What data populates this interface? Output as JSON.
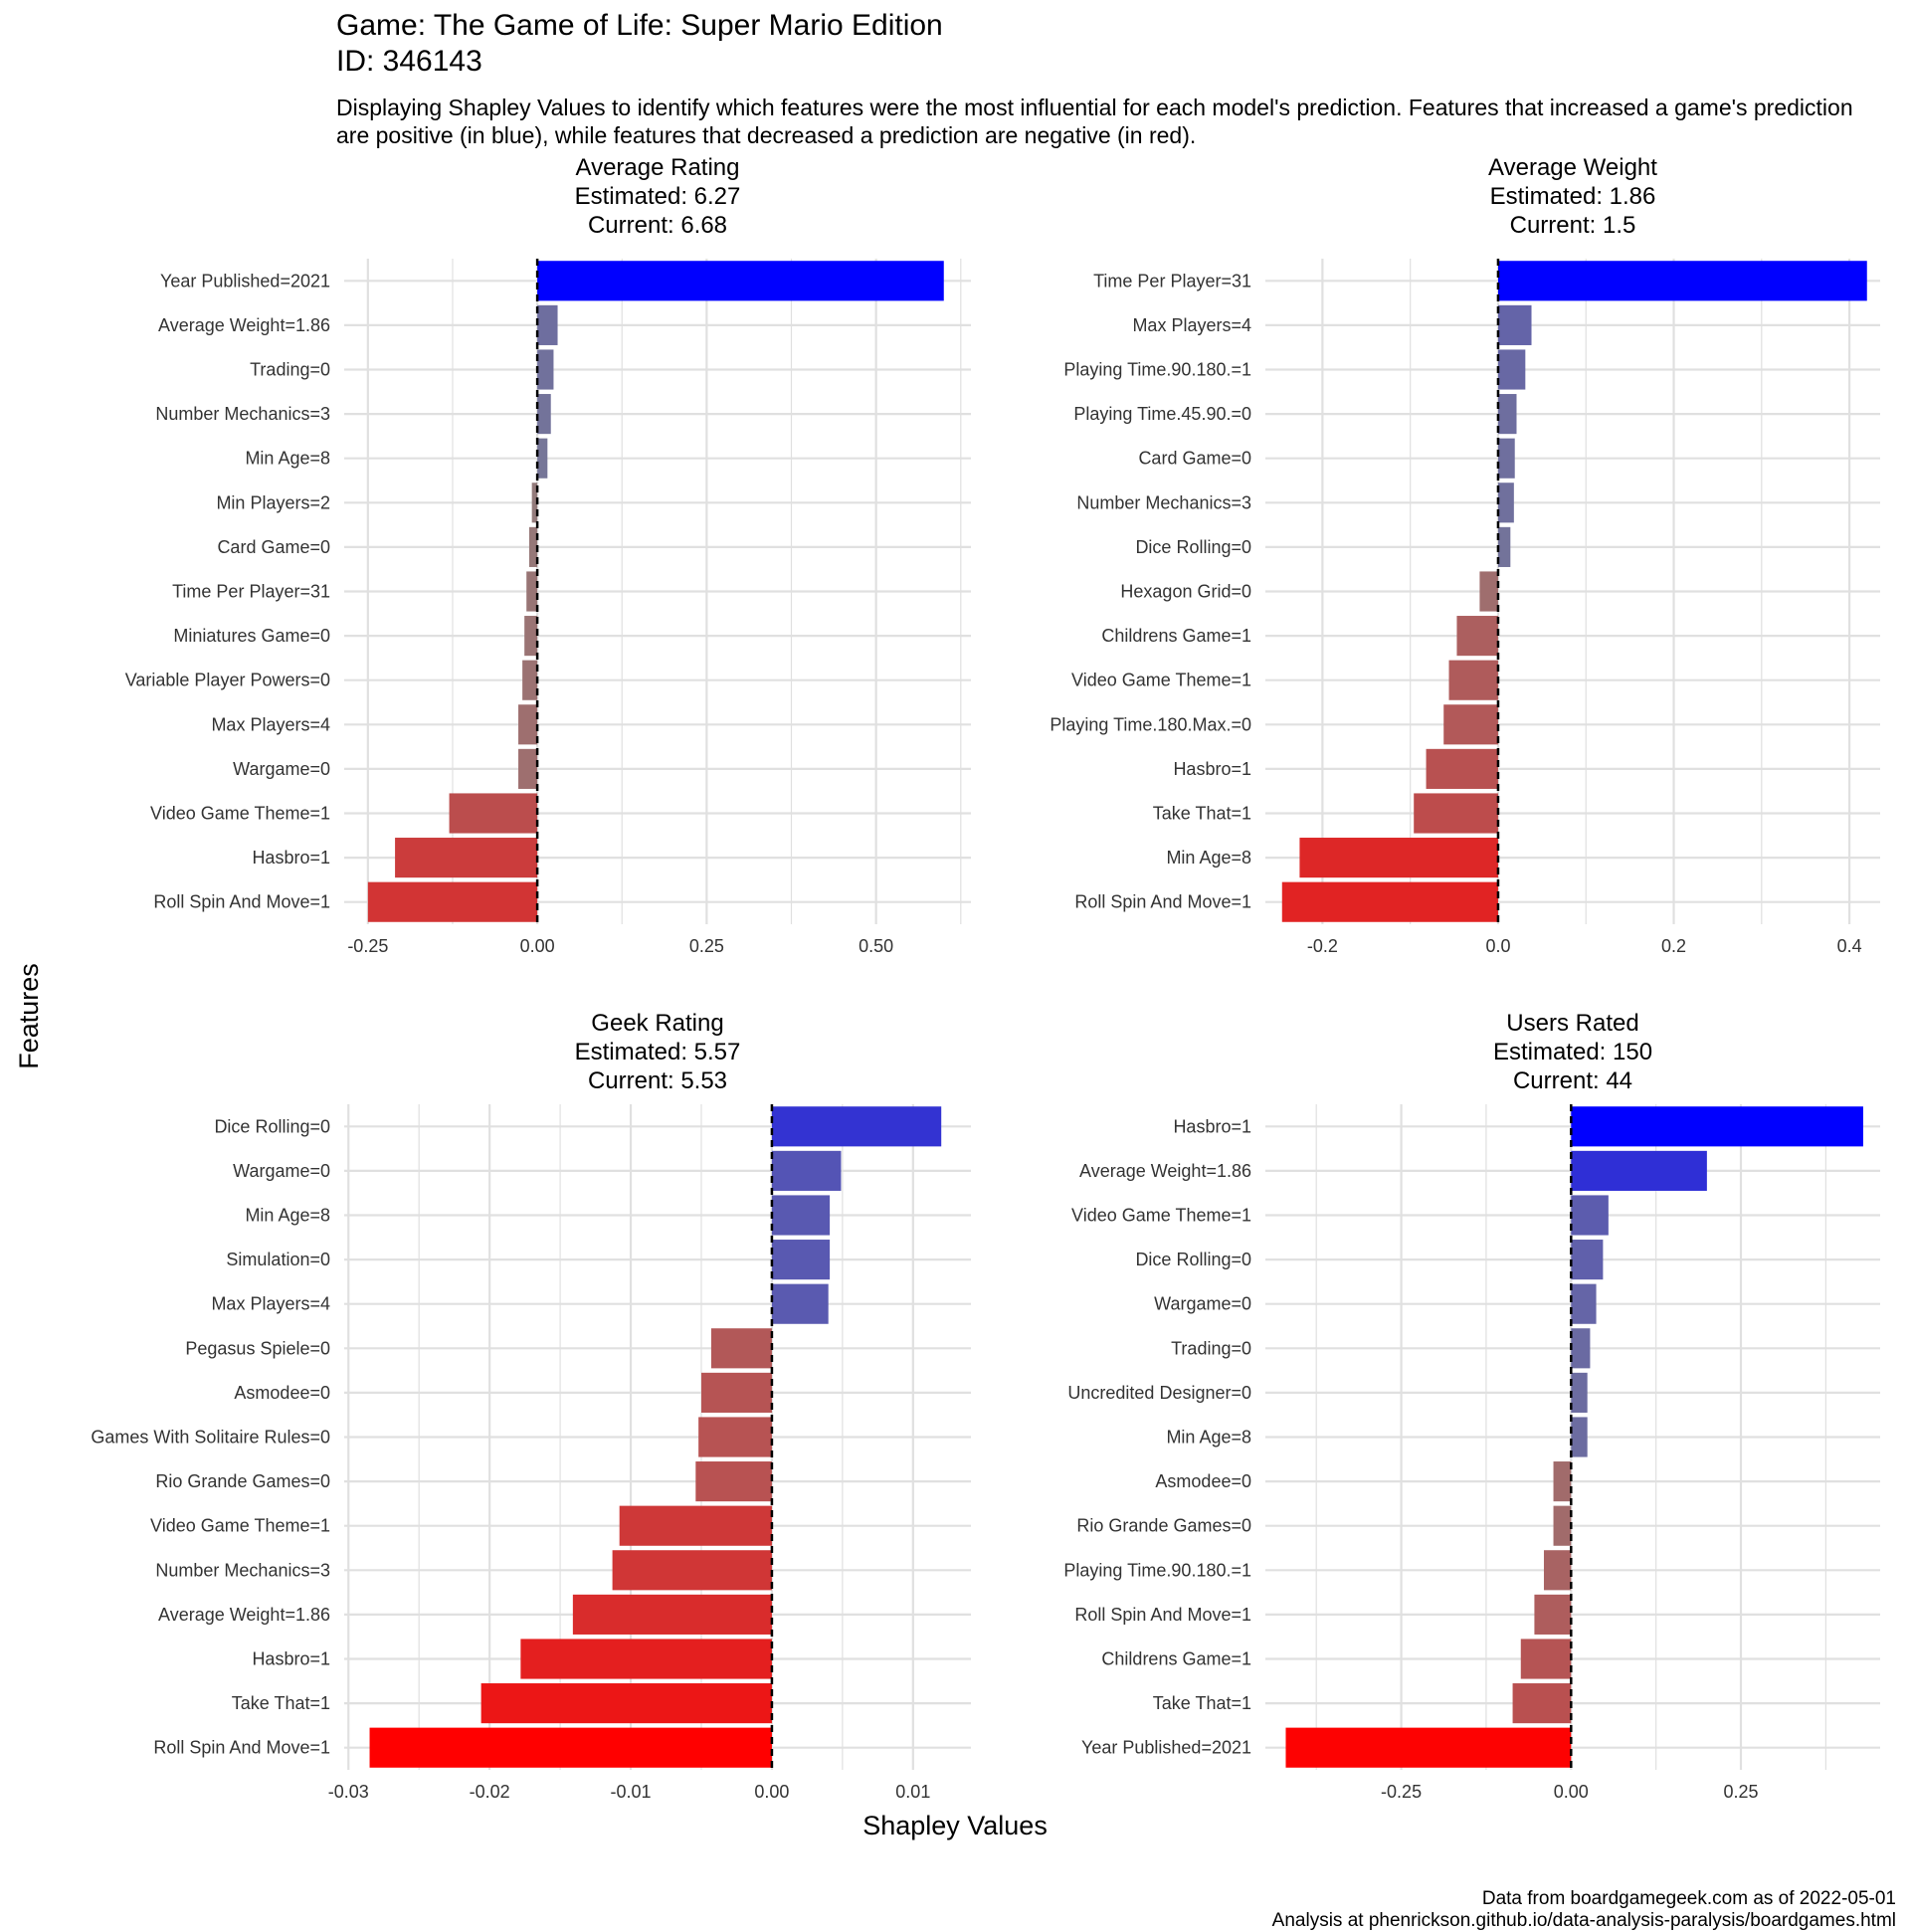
{
  "header": {
    "title_line1": "Game: The Game of Life: Super Mario Edition",
    "title_line2": "ID: 346143",
    "subtitle": "Displaying Shapley Values to identify which features were the most influential for each model's prediction. Features that increased a game's prediction are positive (in blue), while features that decreased a prediction are negative (in red)."
  },
  "axes": {
    "xlabel": "Shapley Values",
    "ylabel": "Features"
  },
  "caption": {
    "line1": "Data from boardgamegeek.com as of 2022-05-01",
    "line2": "Analysis at phenrickson.github.io/data-analysis-paralysis/boardgames.html"
  },
  "colors": {
    "positive": "#0000ff",
    "negative": "#ff0000",
    "neutral": "#888888",
    "grid": "#e0e0e0",
    "zero_line": "#000000"
  },
  "chart_data": [
    {
      "type": "bar",
      "orientation": "horizontal",
      "title": [
        "Average Rating",
        "Estimated: 6.27",
        "Current: 6.68"
      ],
      "categories": [
        "Year Published=2021",
        "Average Weight=1.86",
        "Trading=0",
        "Number Mechanics=3",
        "Min Age=8",
        "Min Players=2",
        "Card Game=0",
        "Time Per Player=31",
        "Miniatures Game=0",
        "Variable Player Powers=0",
        "Max Players=4",
        "Wargame=0",
        "Video Game Theme=1",
        "Hasbro=1",
        "Roll Spin And Move=1"
      ],
      "values": [
        0.6,
        0.03,
        0.024,
        0.02,
        0.015,
        -0.008,
        -0.012,
        -0.016,
        -0.019,
        -0.022,
        -0.028,
        -0.028,
        -0.13,
        -0.21,
        -0.25
      ],
      "xlim": [
        -0.285,
        0.64
      ],
      "xticks": [
        -0.25,
        0.0,
        0.25,
        0.5
      ],
      "xtick_labels": [
        "-0.25",
        "0.00",
        "0.25",
        "0.50"
      ]
    },
    {
      "type": "bar",
      "orientation": "horizontal",
      "title": [
        "Average Weight",
        "Estimated: 1.86",
        "Current: 1.5"
      ],
      "categories": [
        "Time Per Player=31",
        "Max Players=4",
        "Playing Time.90.180.=1",
        "Playing Time.45.90.=0",
        "Card Game=0",
        "Number Mechanics=3",
        "Dice Rolling=0",
        "Hexagon Grid=0",
        "Childrens Game=1",
        "Video Game Theme=1",
        "Playing Time.180.Max.=0",
        "Hasbro=1",
        "Take That=1",
        "Min Age=8",
        "Roll Spin And Move=1"
      ],
      "values": [
        0.42,
        0.038,
        0.031,
        0.021,
        0.019,
        0.018,
        0.014,
        -0.021,
        -0.047,
        -0.056,
        -0.062,
        -0.082,
        -0.096,
        -0.226,
        -0.246
      ],
      "xlim": [
        -0.265,
        0.435
      ],
      "xticks": [
        -0.2,
        0.0,
        0.2,
        0.4
      ],
      "xtick_labels": [
        "-0.2",
        "0.0",
        "0.2",
        "0.4"
      ]
    },
    {
      "type": "bar",
      "orientation": "horizontal",
      "title": [
        "Geek Rating",
        "Estimated: 5.57",
        "Current: 5.53"
      ],
      "categories": [
        "Dice Rolling=0",
        "Wargame=0",
        "Min Age=8",
        "Simulation=0",
        "Max Players=4",
        "Pegasus Spiele=0",
        "Asmodee=0",
        "Games With Solitaire Rules=0",
        "Rio Grande Games=0",
        "Video Game Theme=1",
        "Number Mechanics=3",
        "Average Weight=1.86",
        "Hasbro=1",
        "Take That=1",
        "Roll Spin And Move=1"
      ],
      "values": [
        0.012,
        0.0049,
        0.0041,
        0.0041,
        0.004,
        -0.0043,
        -0.005,
        -0.0052,
        -0.0054,
        -0.0108,
        -0.0113,
        -0.0141,
        -0.0178,
        -0.0206,
        -0.0285
      ],
      "xlim": [
        -0.0303,
        0.0141
      ],
      "xticks": [
        -0.03,
        -0.02,
        -0.01,
        0.0,
        0.01
      ],
      "xtick_labels": [
        "-0.03",
        "-0.02",
        "-0.01",
        "0.00",
        "0.01"
      ]
    },
    {
      "type": "bar",
      "orientation": "horizontal",
      "title": [
        "Users Rated",
        "Estimated: 150",
        "Current: 44"
      ],
      "categories": [
        "Hasbro=1",
        "Average Weight=1.86",
        "Video Game Theme=1",
        "Dice Rolling=0",
        "Wargame=0",
        "Trading=0",
        "Uncredited Designer=0",
        "Min Age=8",
        "Asmodee=0",
        "Rio Grande Games=0",
        "Playing Time.90.180.=1",
        "Roll Spin And Move=1",
        "Childrens Game=1",
        "Take That=1",
        "Year Published=2021"
      ],
      "values": [
        0.43,
        0.2,
        0.055,
        0.047,
        0.037,
        0.028,
        0.024,
        0.024,
        -0.026,
        -0.026,
        -0.04,
        -0.054,
        -0.074,
        -0.086,
        -0.42
      ],
      "xlim": [
        -0.45,
        0.455
      ],
      "xticks": [
        -0.25,
        0.0,
        0.25
      ],
      "xtick_labels": [
        "-0.25",
        "0.00",
        "0.25"
      ]
    }
  ]
}
